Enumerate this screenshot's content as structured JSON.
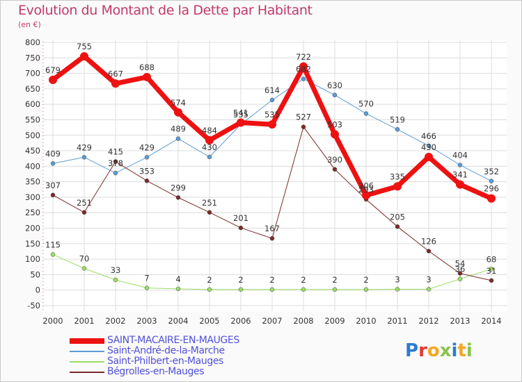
{
  "title": "Evolution du Montant de la Dette par Habitant",
  "unit": "(en €)",
  "logo": {
    "text": "Proxiti",
    "colors": [
      "#2e7bd1",
      "#e53935",
      "#f5a623",
      "#8bc34a",
      "#2e7bd1",
      "#f5a623",
      "#8bc34a"
    ]
  },
  "chart_data": {
    "type": "line",
    "categories": [
      "2000",
      "2001",
      "2002",
      "2003",
      "2004",
      "2005",
      "2006",
      "2007",
      "2008",
      "2009",
      "2010",
      "2011",
      "2012",
      "2013",
      "2014"
    ],
    "ylim": [
      -50,
      800
    ],
    "yticks": [
      -50,
      0,
      50,
      100,
      150,
      200,
      250,
      300,
      350,
      400,
      450,
      500,
      550,
      600,
      650,
      700,
      750,
      800
    ],
    "grid": true,
    "legend_position": "bottom-left",
    "series": [
      {
        "name": "SAINT-MACAIRE-EN-MAUGES",
        "color": "#ee1111",
        "width": 7,
        "values": [
          679,
          755,
          667,
          688,
          574,
          484,
          541,
          535,
          722,
          503,
          306,
          335,
          430,
          341,
          296
        ]
      },
      {
        "name": "Saint-André-de-la-Marche",
        "color": "#5b9bd5",
        "width": 1,
        "values": [
          409,
          429,
          378,
          429,
          489,
          430,
          535,
          614,
          682,
          630,
          570,
          519,
          466,
          404,
          352
        ]
      },
      {
        "name": "Saint-Philbert-en-Mauges",
        "color": "#99dd66",
        "width": 1,
        "values": [
          115,
          70,
          33,
          7,
          4,
          2,
          2,
          2,
          2,
          2,
          2,
          3,
          3,
          36,
          68
        ]
      },
      {
        "name": "Bégrolles-en-Mauges",
        "color": "#7a2a2a",
        "width": 1,
        "values": [
          307,
          251,
          415,
          353,
          299,
          251,
          201,
          167,
          527,
          390,
          293,
          205,
          126,
          54,
          31
        ]
      }
    ]
  }
}
